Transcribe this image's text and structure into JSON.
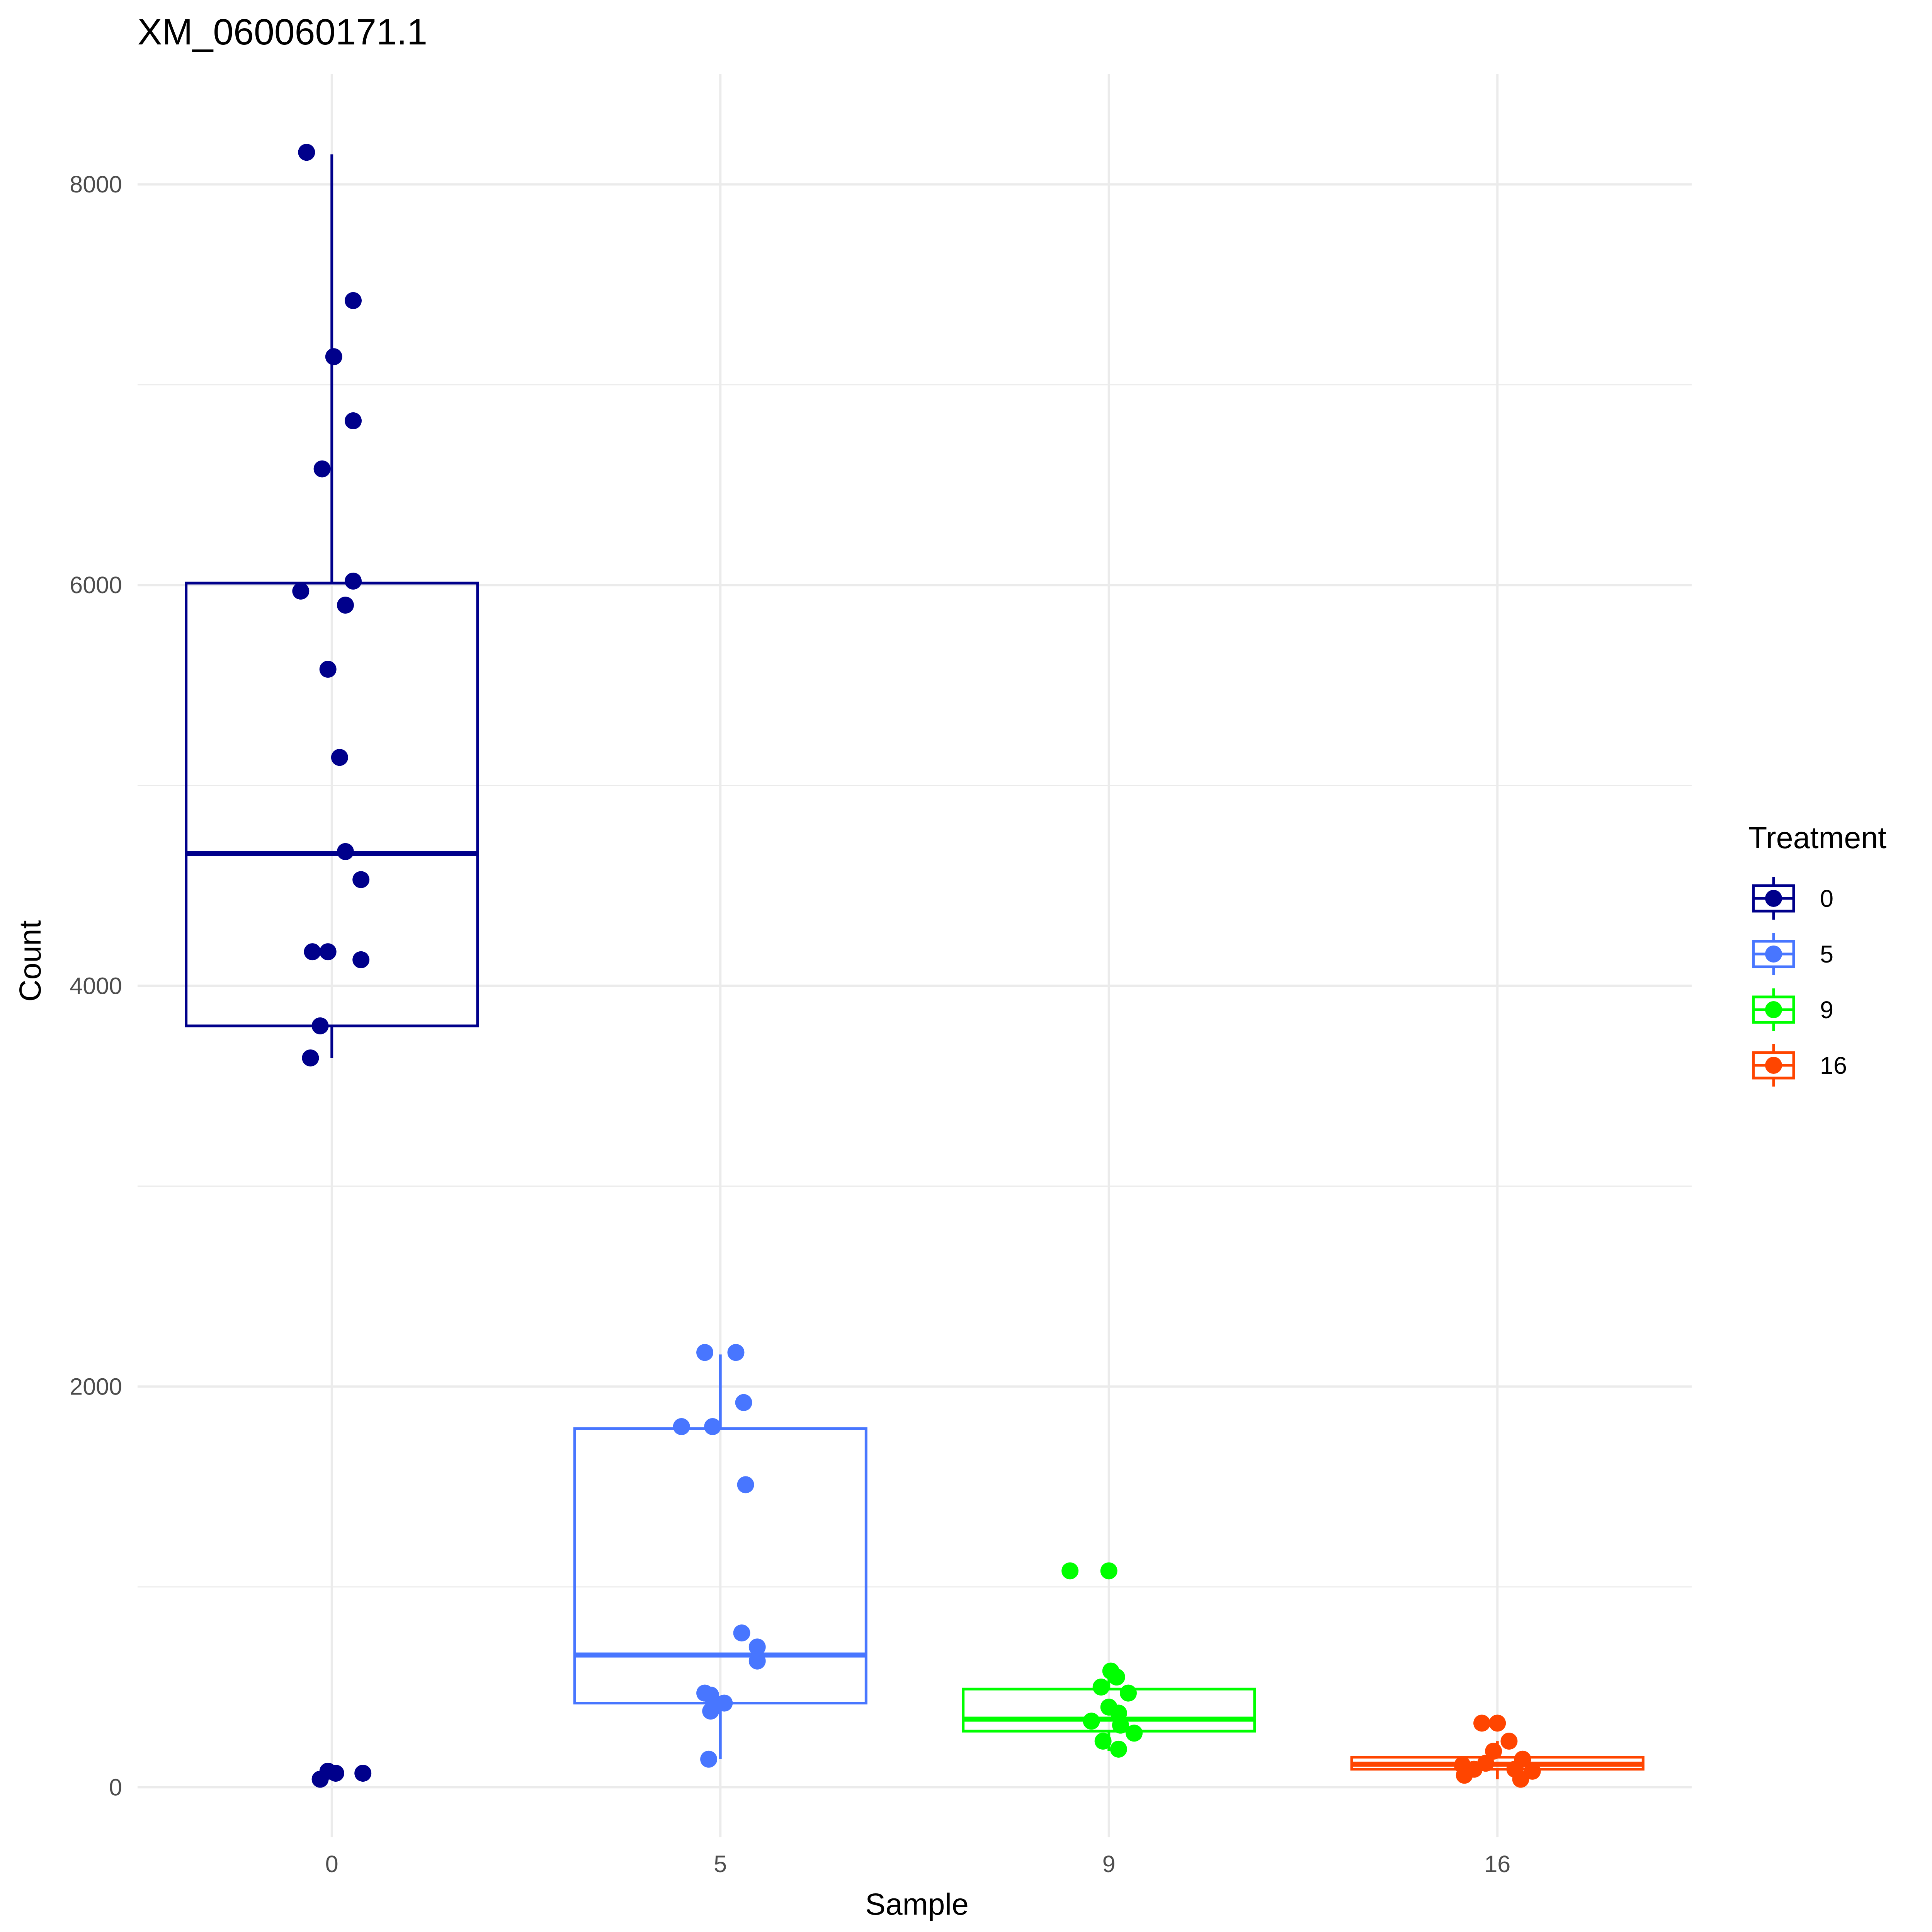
{
  "chart_data": {
    "type": "boxplot",
    "title": "XM_060060171.1",
    "xlabel": "Sample",
    "ylabel": "Count",
    "categories": [
      "0",
      "5",
      "9",
      "16"
    ],
    "y_ticks": [
      0,
      2000,
      4000,
      6000,
      8000
    ],
    "y_tick_labels": [
      "0",
      "2000",
      "4000",
      "6000",
      "8000"
    ],
    "ylim": [
      -250,
      8550
    ],
    "grid": true,
    "legend": {
      "title": "Treatment",
      "position": "right",
      "entries": [
        "0",
        "5",
        "9",
        "16"
      ]
    },
    "series": [
      {
        "name": "0",
        "color": "#00008B",
        "box": {
          "q1": 3800,
          "median": 4660,
          "q3": 6010,
          "whisker_low": 3640,
          "whisker_high": 8150
        },
        "points": [
          {
            "x": -0.065,
            "y": 8160
          },
          {
            "x": 0.055,
            "y": 7420
          },
          {
            "x": 0.005,
            "y": 7140
          },
          {
            "x": 0.055,
            "y": 6820
          },
          {
            "x": -0.025,
            "y": 6580
          },
          {
            "x": 0.055,
            "y": 6020
          },
          {
            "x": -0.08,
            "y": 5970
          },
          {
            "x": 0.035,
            "y": 5900
          },
          {
            "x": -0.01,
            "y": 5580
          },
          {
            "x": 0.02,
            "y": 5140
          },
          {
            "x": 0.035,
            "y": 4670
          },
          {
            "x": 0.075,
            "y": 4530
          },
          {
            "x": -0.05,
            "y": 4170
          },
          {
            "x": -0.01,
            "y": 4170
          },
          {
            "x": 0.075,
            "y": 4130
          },
          {
            "x": -0.03,
            "y": 3800
          },
          {
            "x": -0.055,
            "y": 3640
          },
          {
            "x": -0.01,
            "y": 80
          },
          {
            "x": 0.01,
            "y": 70
          },
          {
            "x": 0.08,
            "y": 70
          },
          {
            "x": -0.03,
            "y": 40
          }
        ]
      },
      {
        "name": "5",
        "color": "#4876FF",
        "box": {
          "q1": 420,
          "median": 660,
          "q3": 1790,
          "whisker_low": 140,
          "whisker_high": 2160
        },
        "points": [
          {
            "x": -0.04,
            "y": 2170
          },
          {
            "x": 0.04,
            "y": 2170
          },
          {
            "x": 0.06,
            "y": 1920
          },
          {
            "x": -0.1,
            "y": 1800
          },
          {
            "x": -0.02,
            "y": 1800
          },
          {
            "x": 0.065,
            "y": 1510
          },
          {
            "x": 0.055,
            "y": 770
          },
          {
            "x": 0.095,
            "y": 700
          },
          {
            "x": 0.095,
            "y": 630
          },
          {
            "x": -0.04,
            "y": 470
          },
          {
            "x": -0.025,
            "y": 460
          },
          {
            "x": 0.01,
            "y": 420
          },
          {
            "x": -0.025,
            "y": 380
          },
          {
            "x": -0.03,
            "y": 140
          }
        ]
      },
      {
        "name": "9",
        "color": "#00FF00",
        "box": {
          "q1": 280,
          "median": 340,
          "q3": 490,
          "whisker_low": 180,
          "whisker_high": 600
        },
        "points": [
          {
            "x": -0.1,
            "y": 1080
          },
          {
            "x": 0.0,
            "y": 1080
          },
          {
            "x": 0.005,
            "y": 580
          },
          {
            "x": 0.02,
            "y": 550
          },
          {
            "x": -0.02,
            "y": 500
          },
          {
            "x": 0.05,
            "y": 470
          },
          {
            "x": 0.0,
            "y": 400
          },
          {
            "x": 0.025,
            "y": 370
          },
          {
            "x": -0.045,
            "y": 330
          },
          {
            "x": 0.03,
            "y": 310
          },
          {
            "x": 0.065,
            "y": 270
          },
          {
            "x": -0.015,
            "y": 230
          },
          {
            "x": 0.025,
            "y": 190
          }
        ]
      },
      {
        "name": "16",
        "color": "#FF4500",
        "box": {
          "q1": 90,
          "median": 115,
          "q3": 150,
          "whisker_low": 40,
          "whisker_high": 230
        },
        "points": [
          {
            "x": -0.04,
            "y": 320
          },
          {
            "x": 0.0,
            "y": 320
          },
          {
            "x": 0.03,
            "y": 230
          },
          {
            "x": -0.01,
            "y": 180
          },
          {
            "x": 0.065,
            "y": 140
          },
          {
            "x": -0.03,
            "y": 120
          },
          {
            "x": -0.09,
            "y": 110
          },
          {
            "x": -0.06,
            "y": 90
          },
          {
            "x": 0.045,
            "y": 90
          },
          {
            "x": 0.09,
            "y": 80
          },
          {
            "x": -0.085,
            "y": 60
          },
          {
            "x": 0.06,
            "y": 40
          }
        ]
      }
    ]
  }
}
